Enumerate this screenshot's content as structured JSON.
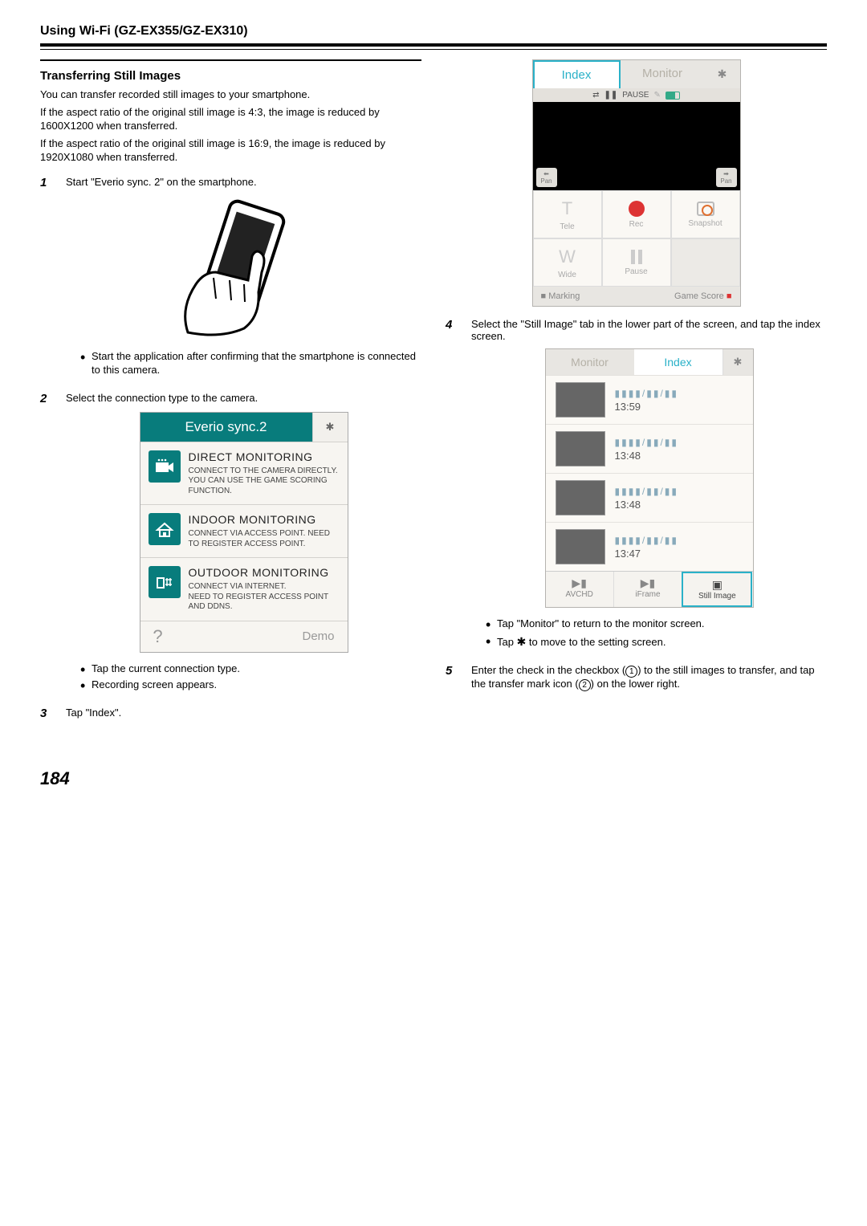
{
  "chapter": "Using Wi-Fi (GZ-EX355/GZ-EX310)",
  "section": "Transferring Still Images",
  "pageNumber": "184",
  "intro": [
    "You can transfer recorded still images to your smartphone.",
    "If the aspect ratio of the original still image is 4:3, the image is reduced by 1600X1200 when transferred.",
    "If the aspect ratio of the original still image is 16:9, the image is reduced by 1920X1080 when transferred."
  ],
  "steps": {
    "s1": {
      "num": "1",
      "text": "Start \"Everio sync. 2\" on the smartphone.",
      "bullet": "Start the application after confirming that the smartphone is connected to this camera."
    },
    "s2": {
      "num": "2",
      "text": "Select the connection type to the camera.",
      "bullets": [
        "Tap the current connection type.",
        "Recording screen appears."
      ]
    },
    "s3": {
      "num": "3",
      "text": "Tap \"Index\"."
    },
    "s4": {
      "num": "4",
      "text": "Select the \"Still Image\" tab in the lower part of the screen, and tap the index screen.",
      "bullets": [
        "Tap \"Monitor\" to return to the monitor screen.",
        "Tap ✱ to move to the setting screen."
      ],
      "bullet_gear_index": 1
    },
    "s5": {
      "num": "5",
      "pre": "Enter the check in the checkbox (",
      "c1": "1",
      "mid": ") to the still images to transfer, and tap the transfer mark icon (",
      "c2": "2",
      "post": ") on the lower right."
    }
  },
  "syncPanel": {
    "title": "Everio sync.2",
    "rows": [
      {
        "h": "DIRECT MONITORING",
        "d": "CONNECT TO THE CAMERA DIRECTLY.\nYOU CAN USE THE GAME SCORING FUNCTION."
      },
      {
        "h": "INDOOR MONITORING",
        "d": "CONNECT VIA ACCESS POINT. NEED TO REGISTER ACCESS POINT."
      },
      {
        "h": "OUTDOOR MONITORING",
        "d": "CONNECT VIA INTERNET.\nNEED TO REGISTER ACCESS POINT AND DDNS."
      }
    ],
    "demo": "Demo"
  },
  "monitor": {
    "tabs": {
      "index": "Index",
      "monitor": "Monitor"
    },
    "status": {
      "label": "PAUSE"
    },
    "pan": "Pan",
    "cells": {
      "tele": "Tele",
      "rec": "Rec",
      "snap": "Snapshot",
      "wide": "Wide",
      "pause": "Pause"
    },
    "footer": {
      "mark": "Marking",
      "game": "Game Score"
    }
  },
  "index": {
    "tabs": {
      "monitor": "Monitor",
      "index": "Index"
    },
    "rows": [
      {
        "date": "▮▮▮▮/▮▮/▮▮",
        "time": "13:59"
      },
      {
        "date": "▮▮▮▮/▮▮/▮▮",
        "time": "13:48"
      },
      {
        "date": "▮▮▮▮/▮▮/▮▮",
        "time": "13:48"
      },
      {
        "date": "▮▮▮▮/▮▮/▮▮",
        "time": "13:47"
      }
    ],
    "bottom": {
      "avchd": "AVCHD",
      "iframe": "iFrame",
      "still": "Still Image"
    }
  }
}
